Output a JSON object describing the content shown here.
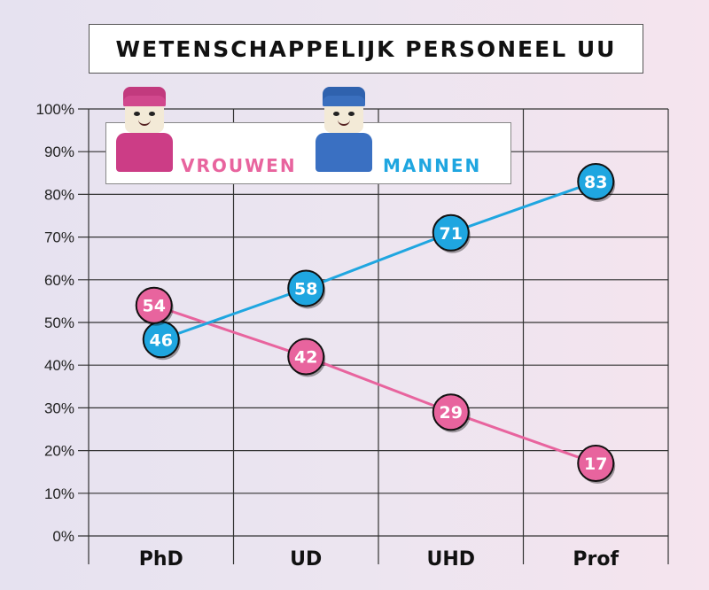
{
  "chart_data": {
    "type": "line",
    "title": "WETENSCHAPPELIJK PERSONEEL UU",
    "categories": [
      "PhD",
      "UD",
      "UHD",
      "Prof"
    ],
    "y_ticks": [
      "0%",
      "10%",
      "20%",
      "30%",
      "40%",
      "50%",
      "60%",
      "70%",
      "80%",
      "90%",
      "100%"
    ],
    "ylim": [
      0,
      100
    ],
    "grid": true,
    "legend_position": "top-left",
    "series": [
      {
        "name": "VROUWEN",
        "values": [
          54,
          42,
          29,
          17
        ],
        "color": "#e8649e"
      },
      {
        "name": "MANNEN",
        "values": [
          46,
          58,
          71,
          83
        ],
        "color": "#1fa6e0"
      }
    ]
  },
  "legend": {
    "women_icon": "pink-woman-figure-icon",
    "men_icon": "blue-man-figure-icon"
  }
}
